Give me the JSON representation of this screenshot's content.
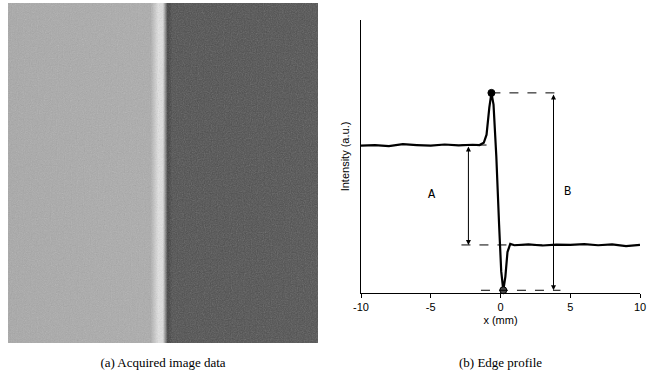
{
  "figure": {
    "panel_a": {
      "caption": "(a) Acquired image data"
    }
  },
  "chart_data": {
    "type": "line",
    "caption": "(b) Edge profile",
    "x_label": "x (mm)",
    "y_label": "Intensity (a.u.)",
    "x": [
      -10,
      -9,
      -8,
      -7,
      -6,
      -5,
      -4,
      -3,
      -2,
      -1.5,
      -1.2,
      -1.0,
      -0.8,
      -0.65,
      -0.5,
      -0.3,
      -0.1,
      0.05,
      0.2,
      0.35,
      0.5,
      0.7,
      1,
      2,
      3,
      4,
      5,
      6,
      7,
      8,
      9,
      10
    ],
    "series": [
      {
        "color": "#000000",
        "marker": "circle",
        "values": [
          5.4,
          5.42,
          5.38,
          5.45,
          5.42,
          5.4,
          5.44,
          5.41,
          5.43,
          5.42,
          5.5,
          5.8,
          6.8,
          7.33,
          6.9,
          5.0,
          2.5,
          0.8,
          0.1,
          0.6,
          1.5,
          1.8,
          1.75,
          1.78,
          1.74,
          1.77,
          1.76,
          1.79,
          1.75,
          1.78,
          1.72,
          1.76
        ]
      }
    ],
    "xlim": [
      -10,
      10
    ],
    "xticks": [
      -10,
      -5,
      0,
      5,
      10
    ],
    "ylim": [
      0,
      10
    ],
    "tick_labels": "x",
    "grid": false,
    "annotations": [
      {
        "text": "A",
        "x": -2.3,
        "from": 5.42,
        "to": 1.76
      },
      {
        "text": "B",
        "x": 3.8,
        "from": 7.33,
        "to": 0.1
      }
    ]
  }
}
